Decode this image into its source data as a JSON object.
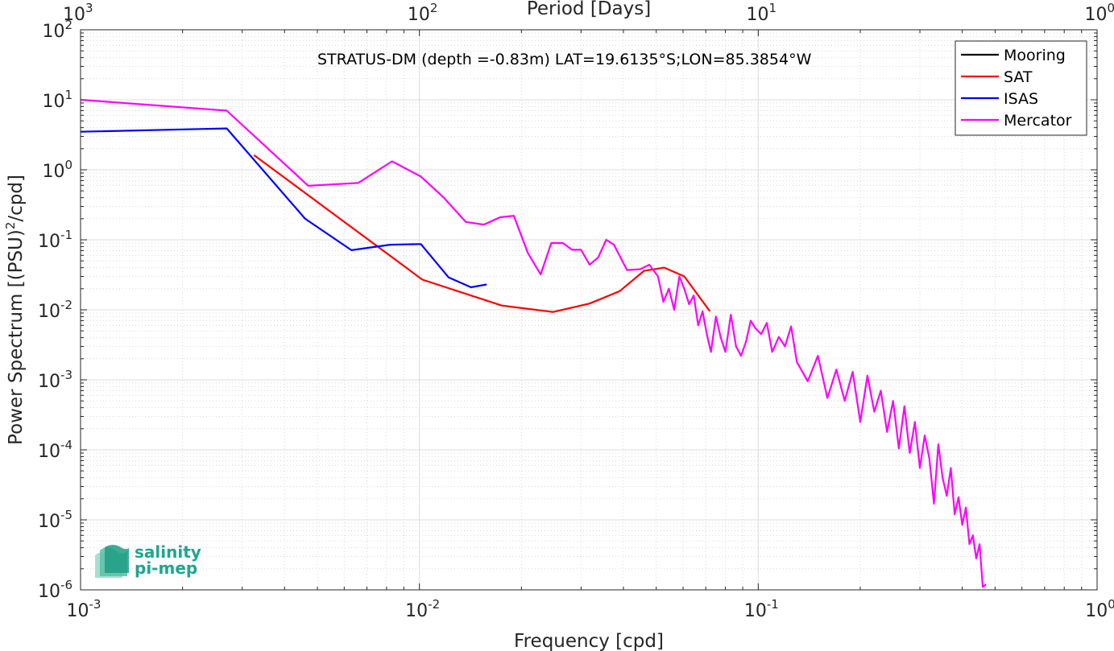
{
  "chart_data": {
    "type": "line",
    "title": "STRATUS-DM (depth =-0.83m) LAT=19.6135°S;LON=85.3854°W",
    "xlabel": "Frequency [cpd]",
    "ylabel_main": "Power Spectrum [(PSU)",
    "ylabel_sup": "2",
    "ylabel_tail": "/cpd]",
    "top_xlabel": "Period [Days]",
    "xscale": "log",
    "yscale": "log",
    "xlim": [
      0.001,
      1
    ],
    "ylim": [
      1e-06,
      100
    ],
    "grid": true,
    "legend_position": "top-right",
    "x_ticks": [
      {
        "v": 0.001,
        "base": "10",
        "exp": "-3"
      },
      {
        "v": 0.01,
        "base": "10",
        "exp": "-2"
      },
      {
        "v": 0.1,
        "base": "10",
        "exp": "-1"
      },
      {
        "v": 1,
        "base": "10",
        "exp": "0"
      }
    ],
    "y_ticks": [
      {
        "v": 1e-06,
        "base": "10",
        "exp": "-6"
      },
      {
        "v": 1e-05,
        "base": "10",
        "exp": "-5"
      },
      {
        "v": 0.0001,
        "base": "10",
        "exp": "-4"
      },
      {
        "v": 0.001,
        "base": "10",
        "exp": "-3"
      },
      {
        "v": 0.01,
        "base": "10",
        "exp": "-2"
      },
      {
        "v": 0.1,
        "base": "10",
        "exp": "-1"
      },
      {
        "v": 1,
        "base": "10",
        "exp": "0"
      },
      {
        "v": 10,
        "base": "10",
        "exp": "1"
      },
      {
        "v": 100,
        "base": "10",
        "exp": "2"
      }
    ],
    "top_ticks": [
      {
        "v": 0.001,
        "base": "10",
        "exp": "3"
      },
      {
        "v": 0.01,
        "base": "10",
        "exp": "2"
      },
      {
        "v": 0.1,
        "base": "10",
        "exp": "1"
      },
      {
        "v": 1,
        "base": "10",
        "exp": "0"
      }
    ],
    "series": [
      {
        "name": "Mooring",
        "color": "#000000",
        "x": [],
        "y": []
      },
      {
        "name": "SAT",
        "color": "#ff0000",
        "x": [
          0.00325,
          0.0102,
          0.0175,
          0.0248,
          0.0318,
          0.039,
          0.046,
          0.0528,
          0.0605,
          0.0695,
          0.072
        ],
        "y": [
          1.62,
          0.027,
          0.0115,
          0.0093,
          0.0123,
          0.0185,
          0.036,
          0.04,
          0.03,
          0.012,
          0.0095
        ]
      },
      {
        "name": "ISAS",
        "color": "#0000ff",
        "x": [
          0.001,
          0.0027,
          0.0046,
          0.0063,
          0.0082,
          0.0101,
          0.0122,
          0.0142,
          0.0158
        ],
        "y": [
          3.5,
          3.9,
          0.2,
          0.071,
          0.085,
          0.087,
          0.029,
          0.021,
          0.023
        ]
      },
      {
        "name": "Mercator",
        "color": "#ff00ff",
        "x": [
          0.001,
          0.0027,
          0.0047,
          0.0066,
          0.0083,
          0.0101,
          0.0118,
          0.0137,
          0.0155,
          0.0173,
          0.019,
          0.0209,
          0.0228,
          0.0245,
          0.0265,
          0.0282,
          0.03,
          0.0318,
          0.0337,
          0.0356,
          0.0375,
          0.0393,
          0.041,
          0.0448,
          0.0477,
          0.0506,
          0.0525,
          0.0545,
          0.0565,
          0.0585,
          0.0605,
          0.0625,
          0.0645,
          0.0665,
          0.0685,
          0.0705,
          0.0725,
          0.075,
          0.0775,
          0.08,
          0.083,
          0.086,
          0.089,
          0.092,
          0.095,
          0.098,
          0.102,
          0.106,
          0.11,
          0.115,
          0.12,
          0.125,
          0.13,
          0.14,
          0.15,
          0.16,
          0.17,
          0.18,
          0.19,
          0.2,
          0.21,
          0.22,
          0.23,
          0.24,
          0.25,
          0.26,
          0.27,
          0.28,
          0.29,
          0.3,
          0.31,
          0.32,
          0.33,
          0.34,
          0.35,
          0.36,
          0.37,
          0.38,
          0.39,
          0.4,
          0.41,
          0.42,
          0.43,
          0.44,
          0.45,
          0.46,
          0.47
        ],
        "y": [
          10,
          7,
          0.59,
          0.65,
          1.32,
          0.8,
          0.4,
          0.18,
          0.165,
          0.21,
          0.22,
          0.065,
          0.032,
          0.09,
          0.09,
          0.072,
          0.072,
          0.044,
          0.056,
          0.1,
          0.085,
          0.055,
          0.037,
          0.038,
          0.044,
          0.03,
          0.013,
          0.02,
          0.01,
          0.03,
          0.02,
          0.012,
          0.016,
          0.006,
          0.0095,
          0.0045,
          0.0025,
          0.008,
          0.004,
          0.0025,
          0.0085,
          0.003,
          0.0022,
          0.0035,
          0.007,
          0.0055,
          0.0045,
          0.0065,
          0.0025,
          0.0041,
          0.003,
          0.0058,
          0.0018,
          0.00095,
          0.0022,
          0.00055,
          0.0014,
          0.0005,
          0.0013,
          0.00025,
          0.00115,
          0.00035,
          0.0007,
          0.00018,
          0.0005,
          0.000105,
          0.00042,
          9e-05,
          0.00025,
          5.5e-05,
          0.00016,
          7.5e-05,
          1.7e-05,
          0.00012,
          4e-05,
          2.2e-05,
          5.5e-05,
          1.2e-05,
          2.1e-05,
          8.5e-06,
          1.5e-05,
          4.5e-06,
          6e-06,
          2.8e-06,
          4.5e-06,
          1.1e-06,
          1.2e-06
        ]
      }
    ]
  },
  "logo": {
    "line1": "salinity",
    "line2": "pi-mep"
  }
}
